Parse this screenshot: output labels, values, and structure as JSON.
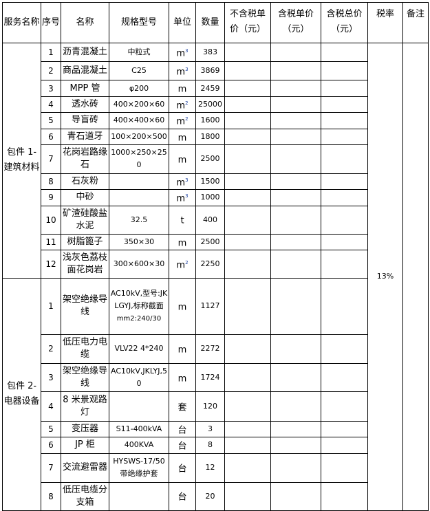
{
  "headers": [
    "服务名称",
    "序号",
    "名称",
    "规格型号",
    "单位",
    "数量",
    "不含税单价（元）",
    "含税单价（元）",
    "含税总价（元）",
    "税率",
    "备注"
  ],
  "tax_rate": "13%",
  "groups": [
    {
      "name": "包件 1-建筑材料",
      "rows": [
        {
          "no": "1",
          "name": "沥青混凝土",
          "spec": "中粒式",
          "unit": "m",
          "unit_sup": "3",
          "qty": "383"
        },
        {
          "no": "2",
          "name": "商品混凝土",
          "spec": "C25",
          "unit": "m",
          "unit_sup": "3",
          "qty": "3869"
        },
        {
          "no": "3",
          "name": "MPP 管",
          "spec": "φ200",
          "unit": "m",
          "unit_sup": "",
          "qty": "2459"
        },
        {
          "no": "4",
          "name": "透水砖",
          "spec": "400×200×60",
          "unit": "m",
          "unit_sup": "2",
          "qty": "25000"
        },
        {
          "no": "5",
          "name": "导盲砖",
          "spec": "400×400×60",
          "unit": "m",
          "unit_sup": "2",
          "qty": "1600"
        },
        {
          "no": "6",
          "name": "青石道牙",
          "spec": "100×200×500",
          "unit": "m",
          "unit_sup": "",
          "qty": "1800"
        },
        {
          "no": "7",
          "name": "花岗岩路缘石",
          "spec": "1000×250×250",
          "unit": "m",
          "unit_sup": "",
          "qty": "2500"
        },
        {
          "no": "8",
          "name": "石灰粉",
          "spec": "",
          "unit": "m",
          "unit_sup": "3",
          "qty": "1500"
        },
        {
          "no": "9",
          "name": "中砂",
          "spec": "",
          "unit": "m",
          "unit_sup": "3",
          "qty": "1000"
        },
        {
          "no": "10",
          "name": "矿渣硅酸盐水泥",
          "spec": "32.5",
          "unit": "t",
          "unit_sup": "",
          "qty": "400"
        },
        {
          "no": "11",
          "name": "树脂篦子",
          "spec": "350×30",
          "unit": "m",
          "unit_sup": "",
          "qty": "2500"
        },
        {
          "no": "12",
          "name": "浅灰色荔枝面花岗岩",
          "spec": "300×600×30",
          "unit": "m",
          "unit_sup": "2",
          "qty": "2250"
        }
      ]
    },
    {
      "name": "包件 2-电器设备",
      "rows": [
        {
          "no": "1",
          "name": "架空绝缘导线",
          "spec": "AC10kV,型号:JKLGYJ,标称截面",
          "spec2": "mm2:240/30",
          "unit": "m",
          "unit_sup": "",
          "qty": "1127"
        },
        {
          "no": "2",
          "name": "低压电力电缆",
          "spec": "VLV22 4*240",
          "unit": "m",
          "unit_sup": "",
          "qty": "2272"
        },
        {
          "no": "3",
          "name": "架空绝缘导线",
          "spec": "AC10kV,JKLYJ,50",
          "unit": "m",
          "unit_sup": "",
          "qty": "1724"
        },
        {
          "no": "4",
          "name": "8 米景观路灯",
          "spec": "",
          "unit": "套",
          "unit_sup": "",
          "qty": "120"
        },
        {
          "no": "5",
          "name": "变压器",
          "spec": "S11-400kVA",
          "unit": "台",
          "unit_sup": "",
          "qty": "3"
        },
        {
          "no": "6",
          "name": "JP 柜",
          "spec": "400KVA",
          "unit": "台",
          "unit_sup": "",
          "qty": "8"
        },
        {
          "no": "7",
          "name": "交流避雷器",
          "spec": "HYSWS-17/50 带绝缘护套",
          "unit": "台",
          "unit_sup": "",
          "qty": "12"
        },
        {
          "no": "8",
          "name": "低压电缆分支箱",
          "spec": "",
          "unit": "台",
          "unit_sup": "",
          "qty": "20"
        }
      ]
    }
  ]
}
